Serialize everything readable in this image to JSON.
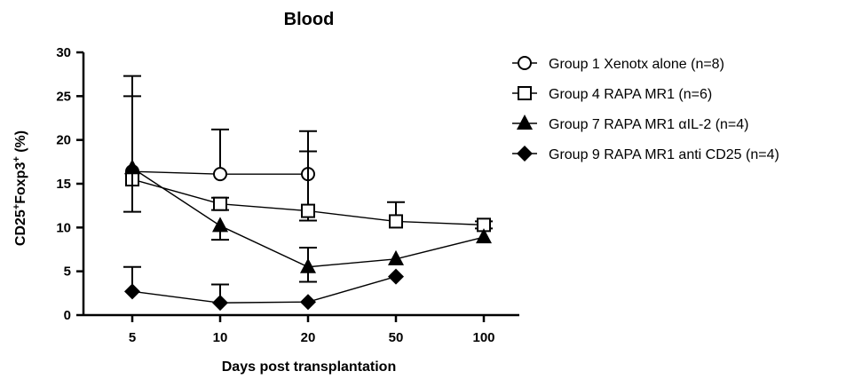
{
  "chart_data": {
    "type": "line",
    "title": "Blood",
    "xlabel": "Days post transplantation",
    "ylabel_parts": {
      "a": "CD25",
      "a_sup": "+",
      "b": "Foxp3",
      "b_sup": "+",
      "c": " (%)"
    },
    "categories": [
      "5",
      "10",
      "20",
      "50",
      "100"
    ],
    "ylim": [
      0,
      30
    ],
    "yticks": [
      0,
      5,
      10,
      15,
      20,
      25,
      30
    ],
    "grid": false,
    "legend_position": "top-right",
    "series": [
      {
        "name": "Group 1 Xenotx alone (n=8)",
        "marker": "circle-open",
        "values": [
          16.4,
          16.1,
          16.1,
          null,
          null
        ],
        "errors": [
          null,
          5.1,
          4.9,
          null,
          null
        ],
        "error_lower": [
          null,
          0,
          0,
          null,
          null
        ]
      },
      {
        "name": "Group 4 RAPA MR1 (n=6)",
        "marker": "square-open",
        "values": [
          15.5,
          12.7,
          11.9,
          10.7,
          10.3
        ],
        "errors": [
          9.5,
          0.7,
          6.8,
          2.2,
          0.4
        ],
        "error_lower": [
          0,
          0.7,
          1.1,
          0,
          0.4
        ]
      },
      {
        "name": "Group 7 RAPA MR1 αIL-2 (n=4)",
        "marker": "triangle-filled",
        "values": [
          16.8,
          10.2,
          5.5,
          6.4,
          8.9
        ],
        "errors": [
          10.5,
          0,
          2.2,
          0,
          0
        ],
        "error_lower": [
          5.0,
          1.6,
          1.7,
          0,
          0
        ]
      },
      {
        "name": "Group 9 RAPA MR1 anti CD25 (n=4)",
        "marker": "diamond-filled",
        "values": [
          2.7,
          1.4,
          1.5,
          4.4,
          null
        ],
        "errors": [
          2.8,
          2.1,
          0,
          0,
          null
        ],
        "error_lower": [
          0,
          0,
          0,
          0,
          null
        ]
      }
    ]
  }
}
